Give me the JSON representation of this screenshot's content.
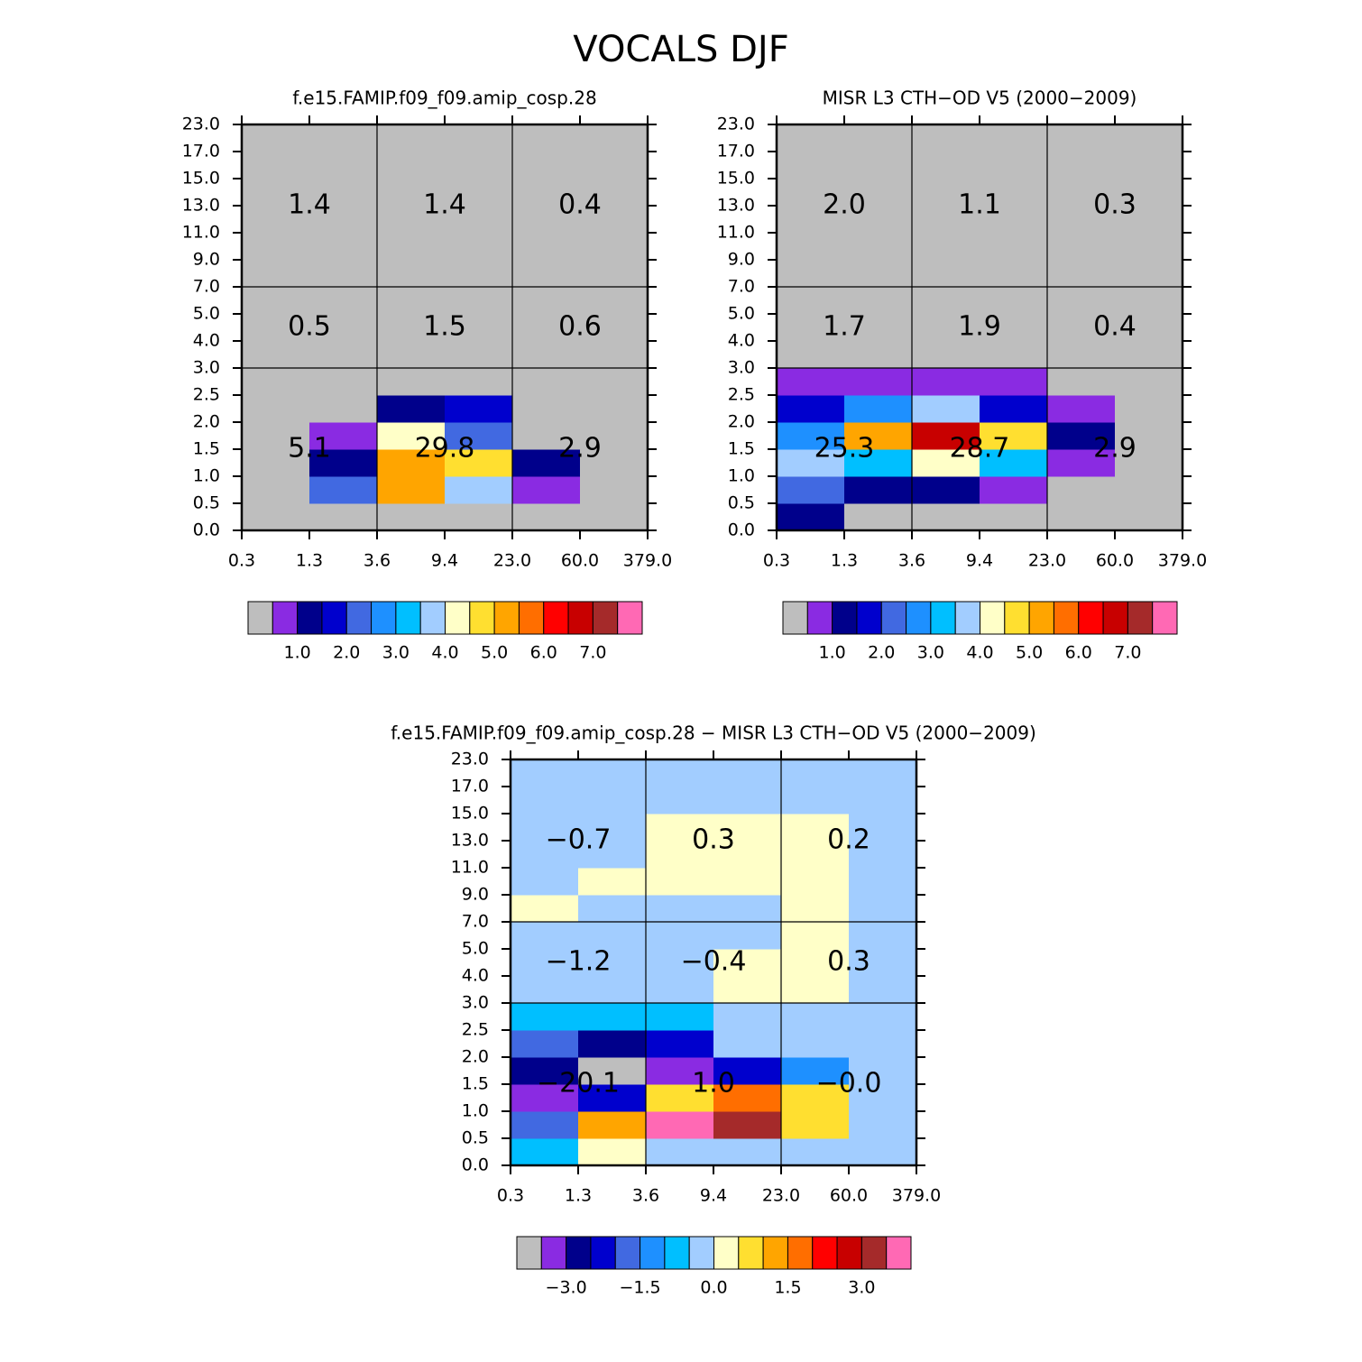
{
  "title": "VOCALS DJF",
  "chart_data": [
    {
      "type": "heatmap",
      "title": "f.e15.FAMIP.f09_f09.amip_cosp.28",
      "xticks": [
        0.3,
        1.3,
        3.6,
        9.4,
        {
          "value": 23,
          "label": "23.0"
        },
        {
          "value": 60,
          "label": "60.0"
        },
        {
          "value": 379,
          "label": "379.0"
        }
      ],
      "yticks": [
        {
          "value": 0,
          "label": "0.0"
        },
        0.5,
        {
          "value": 1,
          "label": "1.0"
        },
        1.5,
        {
          "value": 2,
          "label": "2.0"
        },
        2.5,
        {
          "value": 3,
          "label": "3.0"
        },
        {
          "value": 4,
          "label": "4.0"
        },
        {
          "value": 5,
          "label": "5.0"
        },
        {
          "value": 7,
          "label": "7.0"
        },
        {
          "value": 9,
          "label": "9.0"
        },
        {
          "value": 11,
          "label": "11.0"
        },
        {
          "value": 13,
          "label": "13.0"
        },
        {
          "value": 15,
          "label": "15.0"
        },
        {
          "value": 17,
          "label": "17.0"
        },
        {
          "value": 23,
          "label": "23.0"
        }
      ],
      "values": [
        [
          0.25,
          0.25,
          0.25,
          0.25,
          0.25,
          0.25
        ],
        [
          0.25,
          2.25,
          5.25,
          3.75,
          0.75,
          0.25
        ],
        [
          0.25,
          1.25,
          5.25,
          4.75,
          1.25,
          0.25
        ],
        [
          0.25,
          0.75,
          4.25,
          2.25,
          0.25,
          0.25
        ],
        [
          0.25,
          0.25,
          1.25,
          1.75,
          0.25,
          0.25
        ],
        [
          0.25,
          0.25,
          0.25,
          0.25,
          0.25,
          0.25
        ],
        [
          0.25,
          0.25,
          0.25,
          0.25,
          0.25,
          0.25
        ],
        [
          0.25,
          0.25,
          0.25,
          0.25,
          0.25,
          0.25
        ],
        [
          0.25,
          0.25,
          0.25,
          0.25,
          0.25,
          0.25
        ],
        [
          0.25,
          0.25,
          0.25,
          0.25,
          0.25,
          0.25
        ],
        [
          0.25,
          0.25,
          0.25,
          0.25,
          0.25,
          0.25
        ],
        [
          0.25,
          0.25,
          0.25,
          0.25,
          0.25,
          0.25
        ],
        [
          0.25,
          0.25,
          0.25,
          0.25,
          0.25,
          0.25
        ],
        [
          0.25,
          0.25,
          0.25,
          0.25,
          0.25,
          0.25
        ],
        [
          0.25,
          0.25,
          0.25,
          0.25,
          0.25,
          0.25
        ]
      ],
      "regions": [
        [
          1.4,
          1.4,
          0.4
        ],
        [
          0.5,
          1.5,
          0.6
        ],
        [
          5.1,
          29.8,
          2.9
        ]
      ],
      "levels": [
        0.5,
        1,
        1.5,
        2,
        2.5,
        3,
        3.5,
        4,
        4.5,
        5,
        5.5,
        6,
        6.5,
        7,
        7.5
      ],
      "colors": [
        "#bebebe",
        "#8a2be2",
        "#00008b",
        "#0000cd",
        "#4169e1",
        "#1e90ff",
        "#00bfff",
        "#a2cdff",
        "#ffffc8",
        "#ffdf30",
        "#ffa500",
        "#ff6e00",
        "#ff0000",
        "#c80000",
        "#a52a2a",
        "#ff69b4"
      ],
      "colorbar_ticks": [
        {
          "value": 1,
          "label": "1.0"
        },
        {
          "value": 2,
          "label": "2.0"
        },
        {
          "value": 3,
          "label": "3.0"
        },
        {
          "value": 4,
          "label": "4.0"
        },
        {
          "value": 5,
          "label": "5.0"
        },
        {
          "value": 6,
          "label": "6.0"
        },
        {
          "value": 7,
          "label": "7.0"
        }
      ]
    },
    {
      "type": "heatmap",
      "title": "MISR L3 CTH−OD V5 (2000−2009)",
      "xticks": [
        0.3,
        1.3,
        3.6,
        9.4,
        {
          "value": 23,
          "label": "23.0"
        },
        {
          "value": 60,
          "label": "60.0"
        },
        {
          "value": 379,
          "label": "379.0"
        }
      ],
      "yticks": [
        {
          "value": 0,
          "label": "0.0"
        },
        0.5,
        {
          "value": 1,
          "label": "1.0"
        },
        1.5,
        {
          "value": 2,
          "label": "2.0"
        },
        2.5,
        {
          "value": 3,
          "label": "3.0"
        },
        {
          "value": 4,
          "label": "4.0"
        },
        {
          "value": 5,
          "label": "5.0"
        },
        {
          "value": 7,
          "label": "7.0"
        },
        {
          "value": 9,
          "label": "9.0"
        },
        {
          "value": 11,
          "label": "11.0"
        },
        {
          "value": 13,
          "label": "13.0"
        },
        {
          "value": 15,
          "label": "15.0"
        },
        {
          "value": 17,
          "label": "17.0"
        },
        {
          "value": 23,
          "label": "23.0"
        }
      ],
      "values": [
        [
          1.25,
          0.25,
          0.25,
          0.25,
          0.25,
          0.25
        ],
        [
          2.25,
          1.25,
          1.25,
          0.75,
          0.25,
          0.25
        ],
        [
          3.75,
          3.25,
          4.25,
          3.25,
          0.75,
          0.25
        ],
        [
          2.75,
          5.25,
          6.75,
          4.75,
          1.25,
          0.25
        ],
        [
          1.75,
          2.75,
          3.75,
          1.75,
          0.75,
          0.25
        ],
        [
          0.75,
          0.75,
          0.75,
          0.75,
          0.25,
          0.25
        ],
        [
          0.25,
          0.25,
          0.25,
          0.25,
          0.25,
          0.25
        ],
        [
          0.25,
          0.25,
          0.25,
          0.25,
          0.25,
          0.25
        ],
        [
          0.25,
          0.25,
          0.25,
          0.25,
          0.25,
          0.25
        ],
        [
          0.25,
          0.25,
          0.25,
          0.25,
          0.25,
          0.25
        ],
        [
          0.25,
          0.25,
          0.25,
          0.25,
          0.25,
          0.25
        ],
        [
          0.25,
          0.25,
          0.25,
          0.25,
          0.25,
          0.25
        ],
        [
          0.25,
          0.25,
          0.25,
          0.25,
          0.25,
          0.25
        ],
        [
          0.25,
          0.25,
          0.25,
          0.25,
          0.25,
          0.25
        ],
        [
          0.25,
          0.25,
          0.25,
          0.25,
          0.25,
          0.25
        ]
      ],
      "regions": [
        [
          {
            "value": 2,
            "label": "2.0"
          },
          1.1,
          0.3
        ],
        [
          1.7,
          1.9,
          0.4
        ],
        [
          25.3,
          28.7,
          2.9
        ]
      ],
      "levels": [
        0.5,
        1,
        1.5,
        2,
        2.5,
        3,
        3.5,
        4,
        4.5,
        5,
        5.5,
        6,
        6.5,
        7,
        7.5
      ],
      "colors": [
        "#bebebe",
        "#8a2be2",
        "#00008b",
        "#0000cd",
        "#4169e1",
        "#1e90ff",
        "#00bfff",
        "#a2cdff",
        "#ffffc8",
        "#ffdf30",
        "#ffa500",
        "#ff6e00",
        "#ff0000",
        "#c80000",
        "#a52a2a",
        "#ff69b4"
      ],
      "colorbar_ticks": [
        {
          "value": 1,
          "label": "1.0"
        },
        {
          "value": 2,
          "label": "2.0"
        },
        {
          "value": 3,
          "label": "3.0"
        },
        {
          "value": 4,
          "label": "4.0"
        },
        {
          "value": 5,
          "label": "5.0"
        },
        {
          "value": 6,
          "label": "6.0"
        },
        {
          "value": 7,
          "label": "7.0"
        }
      ]
    },
    {
      "type": "heatmap",
      "title": "f.e15.FAMIP.f09_f09.amip_cosp.28 − MISR L3 CTH−OD V5 (2000−2009)",
      "xticks": [
        0.3,
        1.3,
        3.6,
        9.4,
        {
          "value": 23,
          "label": "23.0"
        },
        {
          "value": 60,
          "label": "60.0"
        },
        {
          "value": 379,
          "label": "379.0"
        }
      ],
      "yticks": [
        {
          "value": 0,
          "label": "0.0"
        },
        0.5,
        {
          "value": 1,
          "label": "1.0"
        },
        1.5,
        {
          "value": 2,
          "label": "2.0"
        },
        2.5,
        {
          "value": 3,
          "label": "3.0"
        },
        {
          "value": 4,
          "label": "4.0"
        },
        {
          "value": 5,
          "label": "5.0"
        },
        {
          "value": 7,
          "label": "7.0"
        },
        {
          "value": 9,
          "label": "9.0"
        },
        {
          "value": 11,
          "label": "11.0"
        },
        {
          "value": 13,
          "label": "13.0"
        },
        {
          "value": 15,
          "label": "15.0"
        },
        {
          "value": 17,
          "label": "17.0"
        },
        {
          "value": 23,
          "label": "23.0"
        }
      ],
      "values": [
        [
          -0.75,
          0.25,
          -0.25,
          -0.25,
          -0.25,
          -0.25
        ],
        [
          -1.75,
          1.25,
          3.75,
          3.25,
          0.75,
          -0.25
        ],
        [
          -3.25,
          -2.25,
          0.75,
          1.75,
          0.75,
          -0.25
        ],
        [
          -2.75,
          -3.75,
          -3.25,
          -2.25,
          -1.25,
          -0.25
        ],
        [
          -1.75,
          -2.75,
          -2.25,
          -0.25,
          -0.25,
          -0.25
        ],
        [
          -0.75,
          -0.75,
          -0.75,
          -0.25,
          -0.25,
          -0.25
        ],
        [
          -0.25,
          -0.25,
          -0.25,
          0.25,
          0.25,
          -0.25
        ],
        [
          -0.25,
          -0.25,
          -0.25,
          0.25,
          0.25,
          -0.25
        ],
        [
          -0.25,
          -0.25,
          -0.25,
          -0.25,
          0.25,
          -0.25
        ],
        [
          0.25,
          -0.25,
          -0.25,
          -0.25,
          0.25,
          -0.25
        ],
        [
          -0.25,
          0.25,
          0.25,
          0.25,
          0.25,
          -0.25
        ],
        [
          -0.25,
          -0.25,
          0.25,
          0.25,
          0.25,
          -0.25
        ],
        [
          -0.25,
          -0.25,
          0.25,
          0.25,
          0.25,
          -0.25
        ],
        [
          -0.25,
          -0.25,
          -0.25,
          -0.25,
          -0.25,
          -0.25
        ],
        [
          -0.25,
          -0.25,
          -0.25,
          -0.25,
          -0.25,
          -0.25
        ]
      ],
      "regions": [
        [
          {
            "value": -0.7,
            "label": "−0.7"
          },
          0.3,
          0.2
        ],
        [
          {
            "value": -1.2,
            "label": "−1.2"
          },
          {
            "value": -0.4,
            "label": "−0.4"
          },
          0.3
        ],
        [
          {
            "value": -20.1,
            "label": "−20.1"
          },
          {
            "value": 1,
            "label": "1.0"
          },
          {
            "value": -0.0,
            "label": "−0.0"
          }
        ]
      ],
      "levels": [
        -3.5,
        -3,
        -2.5,
        -2,
        -1.5,
        -1,
        -0.5,
        0,
        0.5,
        1,
        1.5,
        2,
        2.5,
        3,
        3.5
      ],
      "colors": [
        "#bebebe",
        "#8a2be2",
        "#00008b",
        "#0000cd",
        "#4169e1",
        "#1e90ff",
        "#00bfff",
        "#a2cdff",
        "#ffffc8",
        "#ffdf30",
        "#ffa500",
        "#ff6e00",
        "#ff0000",
        "#c80000",
        "#a52a2a",
        "#ff69b4"
      ],
      "colorbar_ticks": [
        {
          "value": -3,
          "label": "−3.0"
        },
        {
          "value": -1.5,
          "label": "−1.5"
        },
        {
          "value": 0,
          "label": "0.0"
        },
        {
          "value": 1.5,
          "label": "1.5"
        },
        {
          "value": 3,
          "label": "3.0"
        }
      ]
    }
  ]
}
